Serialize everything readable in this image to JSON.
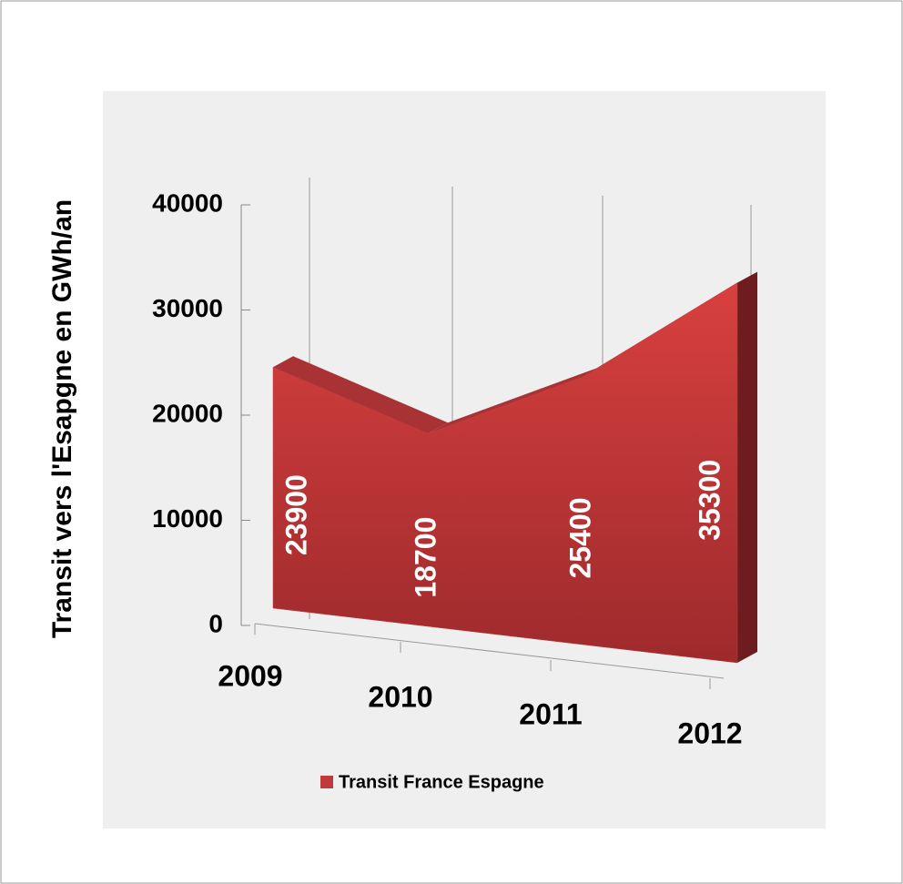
{
  "chart_data": {
    "type": "area3d",
    "categories": [
      "2009",
      "2010",
      "2011",
      "2012"
    ],
    "series": [
      {
        "name": "Transit France Espagne",
        "color": "#c0393b",
        "values": [
          23900,
          18700,
          25400,
          35300
        ]
      }
    ],
    "ylim": [
      0,
      40000
    ],
    "yticks": [
      0,
      10000,
      20000,
      30000,
      40000
    ],
    "ylabel": "Transit vers l'Esapgne en GWh/an",
    "grid": true,
    "legend": "bottom"
  }
}
